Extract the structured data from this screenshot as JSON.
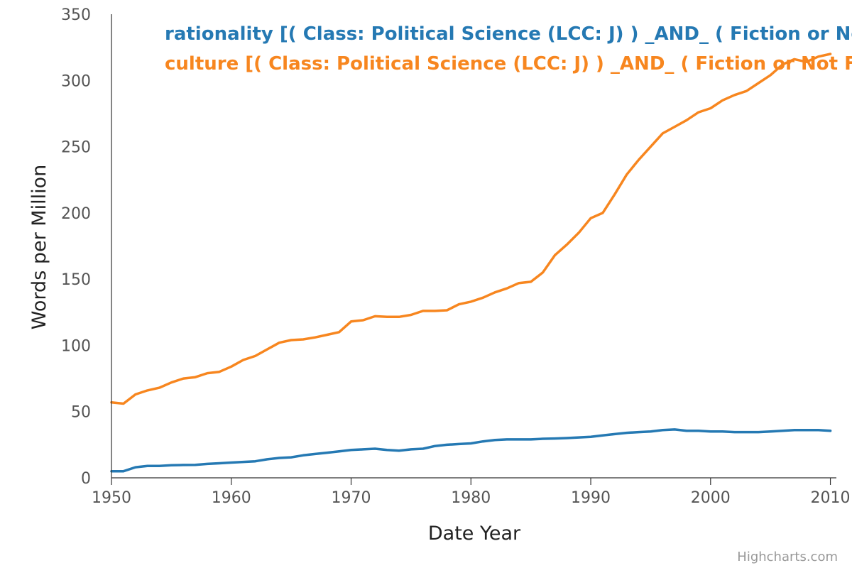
{
  "chart_data": {
    "type": "line",
    "xlabel": "Date Year",
    "ylabel": "Words per Million",
    "xlim": [
      1950,
      2010.5
    ],
    "ylim": [
      0,
      350
    ],
    "x_ticks": [
      1950,
      1960,
      1970,
      1980,
      1990,
      2000,
      2010
    ],
    "y_ticks": [
      0,
      50,
      100,
      150,
      200,
      250,
      300,
      350
    ],
    "credits": "Highcharts.com",
    "x": [
      1950,
      1951,
      1952,
      1953,
      1954,
      1955,
      1956,
      1957,
      1958,
      1959,
      1960,
      1961,
      1962,
      1963,
      1964,
      1965,
      1966,
      1967,
      1968,
      1969,
      1970,
      1971,
      1972,
      1973,
      1974,
      1975,
      1976,
      1977,
      1978,
      1979,
      1980,
      1981,
      1982,
      1983,
      1984,
      1985,
      1986,
      1987,
      1988,
      1989,
      1990,
      1991,
      1992,
      1993,
      1994,
      1995,
      1996,
      1997,
      1998,
      1999,
      2000,
      2001,
      2002,
      2003,
      2004,
      2005,
      2006,
      2007,
      2008,
      2009,
      2010
    ],
    "series": [
      {
        "name": "rationality [( Class: Political Science (LCC: J) ) _AND_ ( Fiction or Not Fiction",
        "color": "#2579b3",
        "values": [
          5,
          5,
          8,
          9,
          9,
          9.5,
          9.7,
          9.8,
          10.5,
          11,
          11.5,
          12,
          12.5,
          14,
          15,
          15.5,
          17,
          18,
          19,
          20,
          21,
          21.5,
          22,
          21,
          20.5,
          21.5,
          22,
          24,
          25,
          25.5,
          26,
          27.5,
          28.5,
          29,
          29,
          29,
          29.5,
          29.7,
          30,
          30.5,
          31,
          32,
          33,
          34,
          34.5,
          35,
          36,
          36.5,
          35.5,
          35.5,
          35,
          35,
          34.5,
          34.5,
          34.5,
          35,
          35.5,
          36,
          36,
          36,
          35.5
        ]
      },
      {
        "name": "culture [( Class: Political Science (LCC: J) ) _AND_ ( Fiction or Not Fiction",
        "color": "#f7861f",
        "values": [
          57,
          56,
          63,
          66,
          68,
          72,
          75,
          76,
          79,
          80,
          84,
          89,
          92,
          97,
          102,
          104,
          104.5,
          106,
          108,
          110,
          118,
          119,
          122,
          121.5,
          121.5,
          123,
          126,
          126,
          126.5,
          131,
          133,
          136,
          140,
          143,
          147,
          148,
          155,
          168,
          176,
          185,
          196,
          200,
          214,
          229,
          240,
          250,
          260,
          265,
          270,
          276,
          279,
          285,
          289,
          292,
          298,
          304,
          312,
          316,
          314,
          318,
          320
        ]
      }
    ]
  }
}
